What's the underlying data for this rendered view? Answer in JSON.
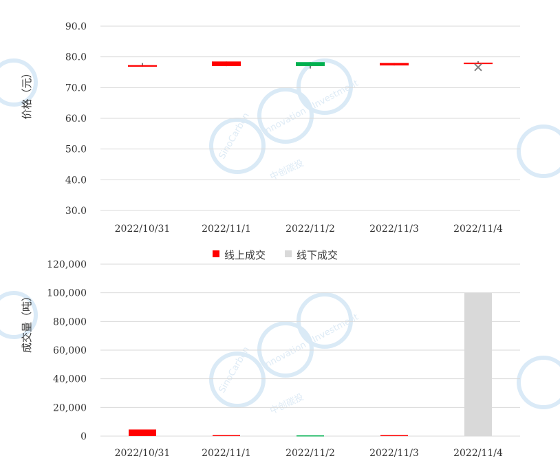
{
  "chart_data": [
    {
      "type": "candlestick",
      "ylabel": "价格（元）",
      "ylim": [
        30,
        90
      ],
      "y_ticks": [
        "90.0",
        "80.0",
        "70.0",
        "60.0",
        "50.0",
        "40.0",
        "30.0"
      ],
      "y_tick_values": [
        90,
        80,
        70,
        60,
        50,
        40,
        30
      ],
      "categories": [
        "2022/10/31",
        "2022/11/1",
        "2022/11/2",
        "2022/11/3",
        "2022/11/4"
      ],
      "up_color": "#ff0000",
      "down_color": "#00b050",
      "candles": [
        {
          "open": 76.8,
          "close": 77.3,
          "high": 78.0,
          "low": 76.8,
          "direction": "up"
        },
        {
          "open": 77.0,
          "close": 78.5,
          "high": 78.5,
          "low": 77.0,
          "direction": "up"
        },
        {
          "open": 78.3,
          "close": 77.0,
          "high": 78.3,
          "low": 76.2,
          "direction": "down"
        },
        {
          "open": 77.2,
          "close": 78.0,
          "high": 78.0,
          "low": 77.2,
          "direction": "up"
        },
        {
          "open": 77.8,
          "close": 78.1,
          "high": 78.6,
          "low": 77.8,
          "direction": "up"
        }
      ],
      "markers": [
        {
          "category": "2022/11/4",
          "value": 76.6,
          "symbol": "x",
          "color": "#7f7f7f"
        }
      ],
      "grid": true
    },
    {
      "type": "bar",
      "ylabel": "成交量（吨）",
      "ylim": [
        0,
        120000
      ],
      "y_ticks": [
        "120,000",
        "100,000",
        "80,000",
        "60,000",
        "40,000",
        "20,000",
        "0"
      ],
      "y_tick_values": [
        120000,
        100000,
        80000,
        60000,
        40000,
        20000,
        0
      ],
      "categories": [
        "2022/10/31",
        "2022/11/1",
        "2022/11/2",
        "2022/11/3",
        "2022/11/4"
      ],
      "series": [
        {
          "name": "线上成交",
          "color": "#ff0000",
          "values": [
            4600,
            700,
            500,
            700,
            0
          ],
          "colors": [
            "#ff0000",
            "#ff0000",
            "#00b050",
            "#ff0000",
            "#ff0000"
          ]
        },
        {
          "name": "线下成交",
          "color": "#d9d9d9",
          "values": [
            0,
            0,
            0,
            0,
            100000
          ]
        }
      ],
      "legend_position": "top",
      "grid": true
    }
  ],
  "watermark": {
    "brand_latin": "SinoCarbon",
    "brand_latin_2": "Innovation · Investment",
    "brand_cn": "中创碳投"
  }
}
